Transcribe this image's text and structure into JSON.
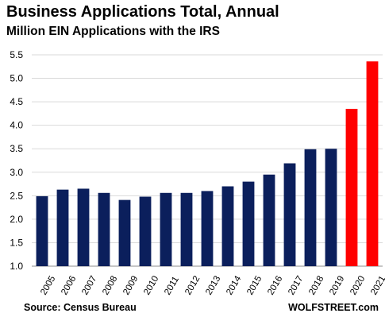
{
  "chart_data": {
    "type": "bar",
    "title": "Business Applications  Total, Annual",
    "subtitle": "Million EIN Applications with the IRS",
    "categories": [
      "2005",
      "2006",
      "2007",
      "2008",
      "2009",
      "2010",
      "2011",
      "2012",
      "2013",
      "2014",
      "2015",
      "2016",
      "2017",
      "2018",
      "2019",
      "2020",
      "2021"
    ],
    "values": [
      2.49,
      2.63,
      2.65,
      2.56,
      2.41,
      2.48,
      2.56,
      2.56,
      2.6,
      2.7,
      2.8,
      2.95,
      3.19,
      3.49,
      3.5,
      4.35,
      5.36
    ],
    "colors": [
      "#0b1f5c",
      "#0b1f5c",
      "#0b1f5c",
      "#0b1f5c",
      "#0b1f5c",
      "#0b1f5c",
      "#0b1f5c",
      "#0b1f5c",
      "#0b1f5c",
      "#0b1f5c",
      "#0b1f5c",
      "#0b1f5c",
      "#0b1f5c",
      "#0b1f5c",
      "#0b1f5c",
      "#ff0000",
      "#ff0000"
    ],
    "ylim": [
      1.0,
      5.5
    ],
    "yticks": [
      "1.0",
      "1.5",
      "2.0",
      "2.5",
      "3.0",
      "3.5",
      "4.0",
      "4.5",
      "5.0",
      "5.5"
    ],
    "grid": true,
    "xlabel": "",
    "ylabel": ""
  },
  "footer": {
    "source": "Source: Census Bureau",
    "brand": "WOLFSTREET.com"
  }
}
